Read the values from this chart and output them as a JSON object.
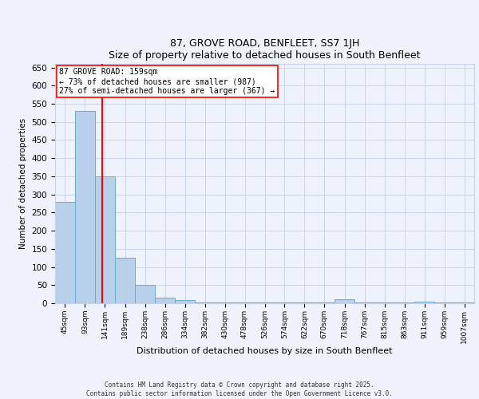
{
  "title1": "87, GROVE ROAD, BENFLEET, SS7 1JH",
  "title2": "Size of property relative to detached houses in South Benfleet",
  "xlabel": "Distribution of detached houses by size in South Benfleet",
  "ylabel": "Number of detached properties",
  "bin_labels": [
    "45sqm",
    "93sqm",
    "141sqm",
    "189sqm",
    "238sqm",
    "286sqm",
    "334sqm",
    "382sqm",
    "430sqm",
    "478sqm",
    "526sqm",
    "574sqm",
    "622sqm",
    "670sqm",
    "718sqm",
    "767sqm",
    "815sqm",
    "863sqm",
    "911sqm",
    "959sqm",
    "1007sqm"
  ],
  "bin_edges": [
    45,
    93,
    141,
    189,
    238,
    286,
    334,
    382,
    430,
    478,
    526,
    574,
    622,
    670,
    718,
    767,
    815,
    863,
    911,
    959,
    1007
  ],
  "bar_heights": [
    280,
    530,
    350,
    125,
    50,
    15,
    8,
    3,
    2,
    2,
    2,
    2,
    2,
    2,
    10,
    2,
    2,
    2,
    5,
    2,
    3
  ],
  "bar_color": "#b8d0ea",
  "bar_edge_color": "#6aaad4",
  "red_line_x": 159,
  "annotation_text": "87 GROVE ROAD: 159sqm\n← 73% of detached houses are smaller (987)\n27% of semi-detached houses are larger (367) →",
  "annotation_box_color": "white",
  "annotation_box_edge_color": "red",
  "ylim": [
    0,
    660
  ],
  "yticks": [
    0,
    50,
    100,
    150,
    200,
    250,
    300,
    350,
    400,
    450,
    500,
    550,
    600,
    650
  ],
  "footer_line1": "Contains HM Land Registry data © Crown copyright and database right 2025.",
  "footer_line2": "Contains public sector information licensed under the Open Government Licence v3.0.",
  "bg_color": "#eef2fb",
  "grid_color": "#c8d0e8"
}
